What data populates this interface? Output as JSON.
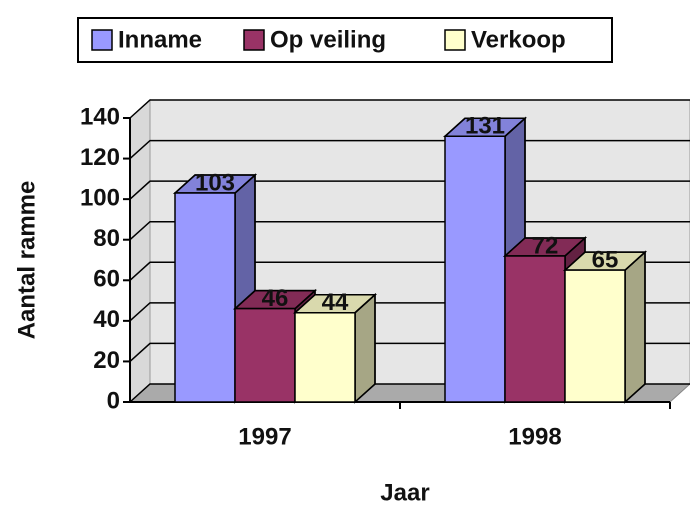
{
  "chart_data": {
    "type": "bar3d",
    "categories": [
      "1997",
      "1998"
    ],
    "series": [
      {
        "name": "Inname",
        "color": "#9999ff",
        "values": [
          103,
          131
        ]
      },
      {
        "name": "Op veiling",
        "color": "#993366",
        "values": [
          46,
          72
        ]
      },
      {
        "name": "Verkoop",
        "color": "#ffffcc",
        "values": [
          44,
          65
        ]
      }
    ],
    "ylabel": "Aantal ramme",
    "xlabel": "Jaar",
    "ylim": [
      0,
      140
    ],
    "yticks": [
      0,
      20,
      40,
      60,
      80,
      100,
      120,
      140
    ],
    "grid": true,
    "legend": "top"
  }
}
